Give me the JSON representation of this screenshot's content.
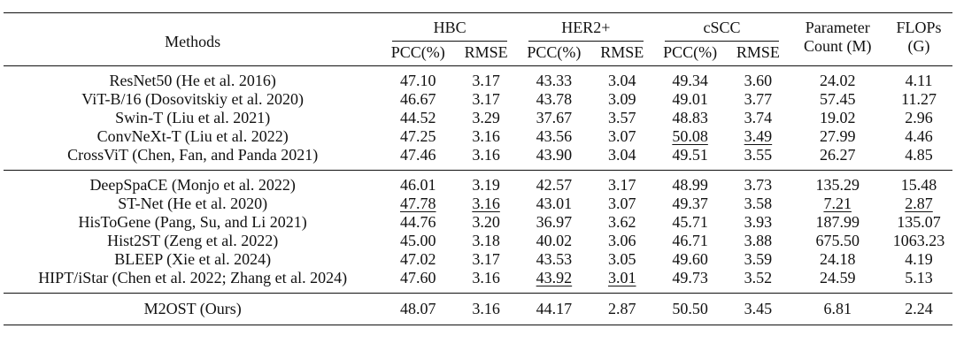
{
  "table": {
    "headers": {
      "methods": "Methods",
      "groups": [
        "HBC",
        "HER2+",
        "cSCC"
      ],
      "metrics": [
        "PCC(%)",
        "RMSE"
      ],
      "param_line1": "Parameter",
      "param_line2": "Count (M)",
      "flops_line1": "FLOPs",
      "flops_line2": "(G)"
    },
    "section_a": [
      {
        "method": "ResNet50 (He et al. 2016)",
        "values": [
          "47.10",
          "3.17",
          "43.33",
          "3.04",
          "49.34",
          "3.60",
          "24.02",
          "4.11"
        ],
        "underline": []
      },
      {
        "method": "ViT-B/16 (Dosovitskiy et al. 2020)",
        "values": [
          "46.67",
          "3.17",
          "43.78",
          "3.09",
          "49.01",
          "3.77",
          "57.45",
          "11.27"
        ],
        "underline": []
      },
      {
        "method": "Swin-T (Liu et al. 2021)",
        "values": [
          "44.52",
          "3.29",
          "37.67",
          "3.57",
          "48.83",
          "3.74",
          "19.02",
          "2.96"
        ],
        "underline": []
      },
      {
        "method": "ConvNeXt-T (Liu et al. 2022)",
        "values": [
          "47.25",
          "3.16",
          "43.56",
          "3.07",
          "50.08",
          "3.49",
          "27.99",
          "4.46"
        ],
        "underline": [
          4,
          5
        ]
      },
      {
        "method": "CrossViT (Chen, Fan, and Panda 2021)",
        "values": [
          "47.46",
          "3.16",
          "43.90",
          "3.04",
          "49.51",
          "3.55",
          "26.27",
          "4.85"
        ],
        "underline": []
      }
    ],
    "section_b": [
      {
        "method": "DeepSpaCE (Monjo et al. 2022)",
        "values": [
          "46.01",
          "3.19",
          "42.57",
          "3.17",
          "48.99",
          "3.73",
          "135.29",
          "15.48"
        ],
        "underline": []
      },
      {
        "method": "ST-Net (He et al. 2020)",
        "values": [
          "47.78",
          "3.16",
          "43.01",
          "3.07",
          "49.37",
          "3.58",
          "7.21",
          "2.87"
        ],
        "underline": [
          0,
          1,
          6,
          7
        ]
      },
      {
        "method": "HisToGene (Pang, Su, and Li 2021)",
        "values": [
          "44.76",
          "3.20",
          "36.97",
          "3.62",
          "45.71",
          "3.93",
          "187.99",
          "135.07"
        ],
        "underline": []
      },
      {
        "method": "Hist2ST (Zeng et al. 2022)",
        "values": [
          "45.00",
          "3.18",
          "40.02",
          "3.06",
          "46.71",
          "3.88",
          "675.50",
          "1063.23"
        ],
        "underline": []
      },
      {
        "method": "BLEEP (Xie et al. 2024)",
        "values": [
          "47.02",
          "3.17",
          "43.53",
          "3.05",
          "49.60",
          "3.59",
          "24.18",
          "4.19"
        ],
        "underline": []
      },
      {
        "method": "HIPT/iStar (Chen et al. 2022; Zhang et al. 2024)",
        "values": [
          "47.60",
          "3.16",
          "43.92",
          "3.01",
          "49.73",
          "3.52",
          "24.59",
          "5.13"
        ],
        "underline": [
          2,
          3
        ]
      }
    ],
    "ours": {
      "method": "M2OST (Ours)",
      "values": [
        "48.07",
        "3.16",
        "44.17",
        "2.87",
        "50.50",
        "3.45",
        "6.81",
        "2.24"
      ]
    }
  }
}
